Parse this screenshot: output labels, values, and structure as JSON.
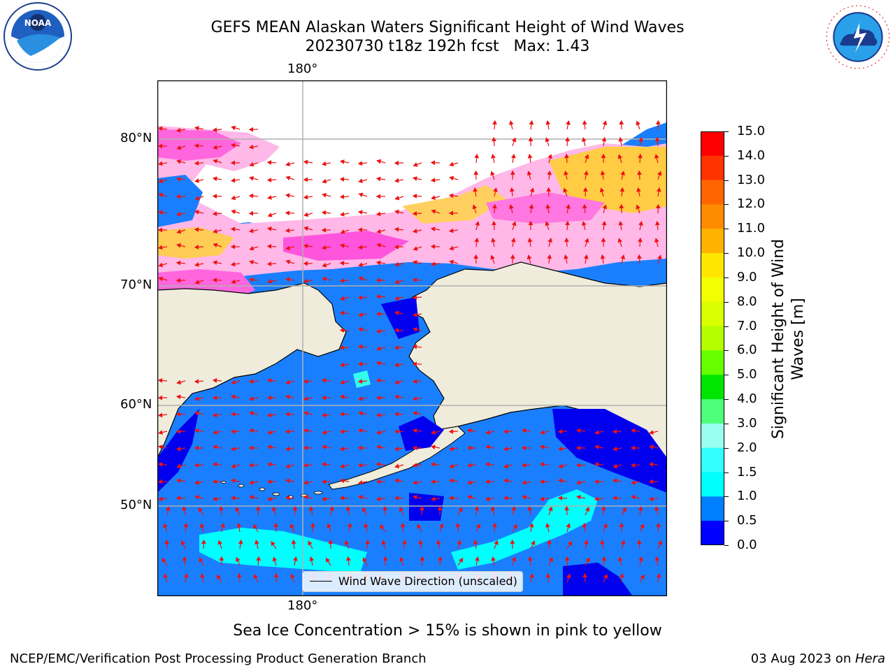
{
  "title": {
    "line1": "GEFS MEAN Alaskan Waters Significant Height of Wind Waves",
    "line2": "20230730 t18z 192h fcst   Max: 1.43"
  },
  "axes": {
    "top_lon": "180°",
    "bottom_lon": "180°",
    "lat_80": "80°N",
    "lat_70": "70°N",
    "lat_60": "60°N",
    "lat_50": "50°N"
  },
  "colorbar": {
    "title": "Significant Height of Wind Waves [m]",
    "ticks": [
      "15.0",
      "14.0",
      "13.0",
      "12.0",
      "11.0",
      "10.0",
      "9.0",
      "8.0",
      "7.0",
      "6.0",
      "5.0",
      "4.0",
      "3.0",
      "2.0",
      "1.5",
      "1.0",
      "0.5",
      "0.0"
    ],
    "colors": [
      "#ff0000",
      "#ff3300",
      "#ff6600",
      "#ff8c00",
      "#ffb300",
      "#ffe600",
      "#f2ff00",
      "#d9ff00",
      "#b3ff00",
      "#66ff00",
      "#00e600",
      "#4dff7a",
      "#99ffee",
      "#33ffff",
      "#00ffff",
      "#0080ff",
      "#0000ff"
    ]
  },
  "legend": {
    "label": "Wind Wave Direction (unscaled)"
  },
  "note": "Sea Ice Concentration > 15% is shown in pink to yellow",
  "footer": {
    "left": "NCEP/EMC/Verification Post Processing Product Generation Branch",
    "right_date": "03 Aug 2023 on ",
    "right_host": "Hera"
  },
  "logos": {
    "noaa": "NOAA",
    "nws": "NATIONAL WEATHER SERVICE"
  },
  "map_colors": {
    "ocean": "#1a7fff",
    "deep_blue": "#0000ee",
    "cyan": "#00ffff",
    "land": "#efecdc",
    "ice_pink": "#ff66dd",
    "ice_yellow": "#ffcc44",
    "arrow": "#ee1111",
    "grid": "#b0b0b0"
  }
}
